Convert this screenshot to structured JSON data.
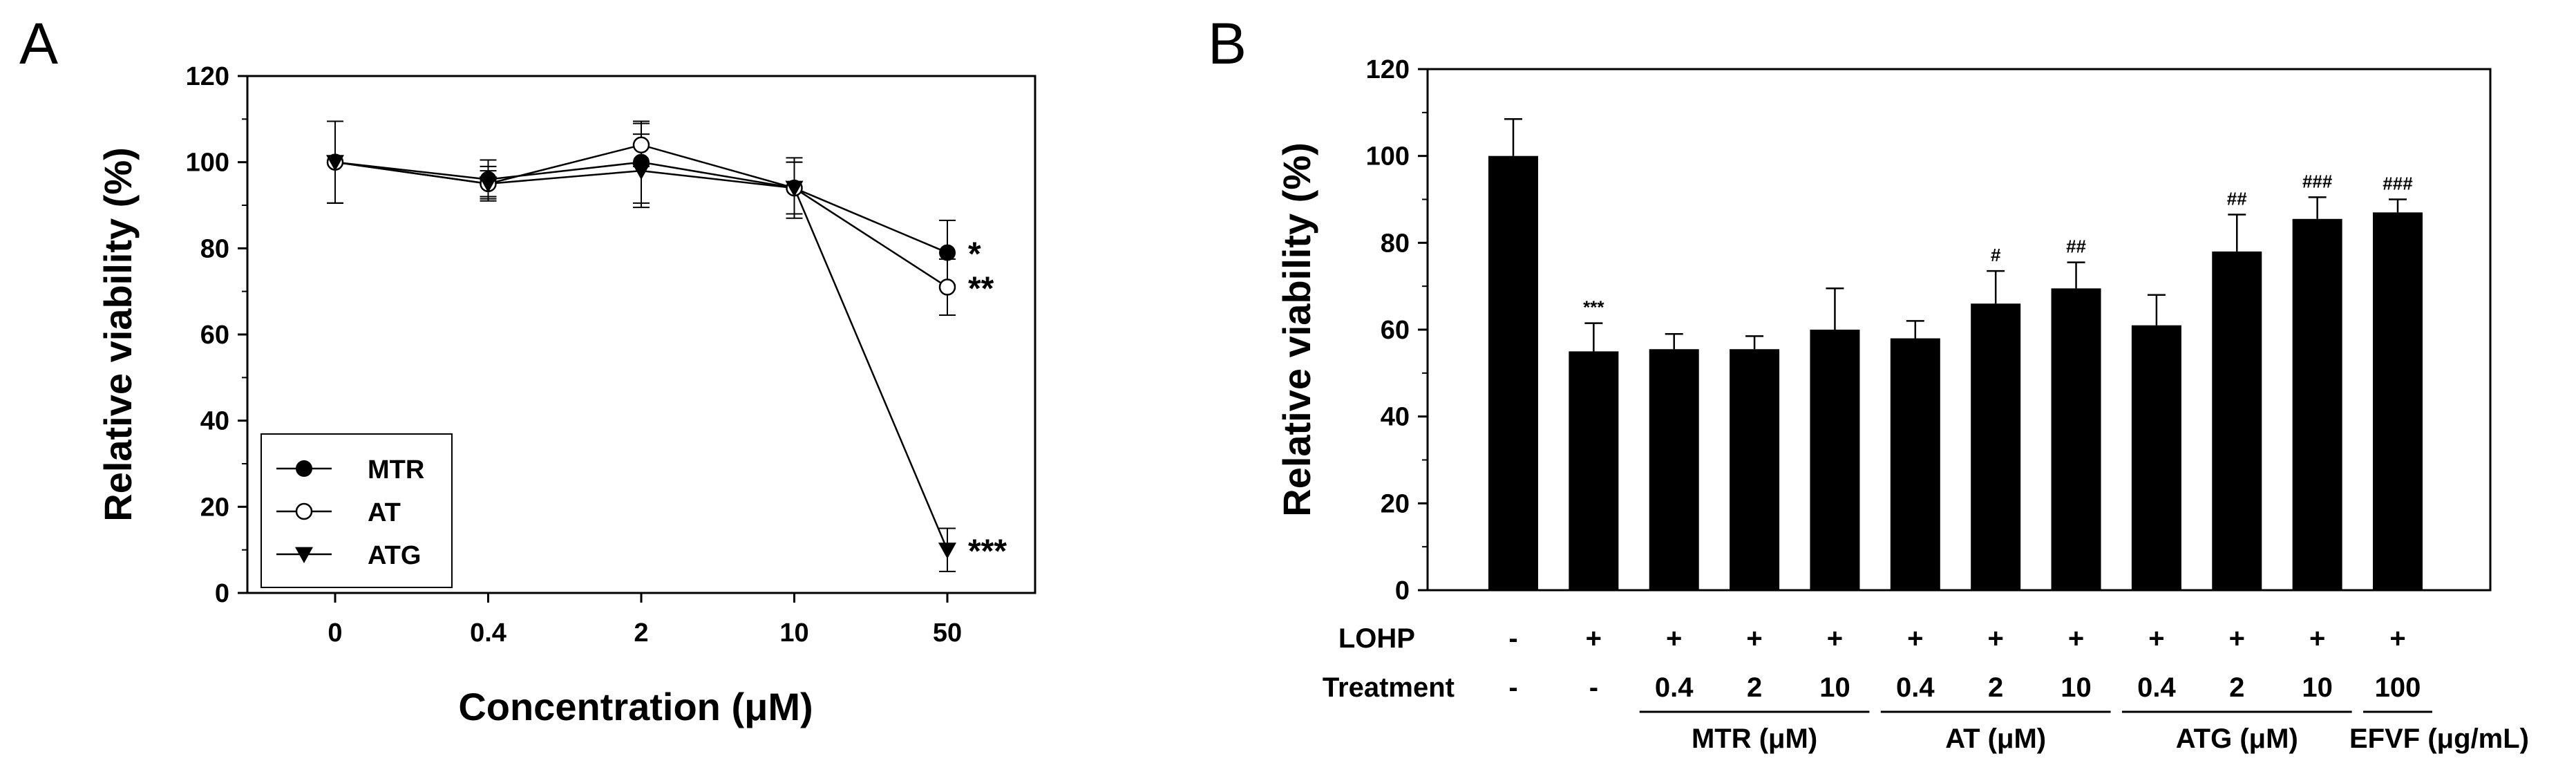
{
  "chart_data": [
    {
      "panel": "A",
      "type": "line",
      "xlabel": "Concentration (μM)",
      "ylabel": "Relative viability (%)",
      "categories": [
        "0",
        "0.4",
        "2",
        "10",
        "50"
      ],
      "ylim": [
        0,
        120
      ],
      "yticks": [
        "0",
        "20",
        "40",
        "60",
        "80",
        "100",
        "120"
      ],
      "legend_position": "bottom-left",
      "series": [
        {
          "name": "MTR",
          "marker": "filled-circle",
          "values": [
            100,
            96,
            100,
            94,
            79
          ],
          "errors": [
            9.5,
            4.5,
            9.5,
            6,
            7.5
          ],
          "significance": "*"
        },
        {
          "name": "AT",
          "marker": "open-circle",
          "values": [
            100,
            95,
            104,
            94,
            71
          ],
          "errors": [
            9.5,
            4,
            5,
            7,
            6.5
          ],
          "significance": "**"
        },
        {
          "name": "ATG",
          "marker": "filled-triangle-down",
          "values": [
            100,
            95,
            98,
            94,
            10
          ],
          "errors": [
            9.5,
            3,
            8.5,
            6,
            5
          ],
          "significance": "***"
        }
      ]
    },
    {
      "panel": "B",
      "type": "bar",
      "ylabel": "Relative viability (%)",
      "ylim": [
        0,
        120
      ],
      "yticks": [
        "0",
        "20",
        "40",
        "60",
        "80",
        "100",
        "120"
      ],
      "values": [
        100,
        55,
        55.5,
        55.5,
        60,
        58,
        66,
        69.5,
        61,
        78,
        85.5,
        87
      ],
      "errors": [
        8.5,
        6.5,
        3.5,
        3,
        9.5,
        4,
        7.5,
        6,
        7,
        8.5,
        5,
        3
      ],
      "annotations": [
        "",
        "***",
        "",
        "",
        "",
        "",
        "#",
        "##",
        "",
        "##",
        "###",
        "###"
      ],
      "row_labels": {
        "lohp": "LOHP",
        "treatment": "Treatment"
      },
      "lohp": [
        "-",
        "+",
        "+",
        "+",
        "+",
        "+",
        "+",
        "+",
        "+",
        "+",
        "+",
        "+"
      ],
      "treatment": [
        "-",
        "-",
        "0.4",
        "2",
        "10",
        "0.4",
        "2",
        "10",
        "0.4",
        "2",
        "10",
        "100"
      ],
      "groups": [
        {
          "label": "MTR (μM)",
          "from": 2,
          "to": 4
        },
        {
          "label": "AT (μM)",
          "from": 5,
          "to": 7
        },
        {
          "label": "ATG (μM)",
          "from": 8,
          "to": 10
        },
        {
          "label": "EFVF (μg/mL)",
          "from": 11,
          "to": 11
        }
      ]
    }
  ],
  "panel_labels": {
    "a": "A",
    "b": "B"
  }
}
